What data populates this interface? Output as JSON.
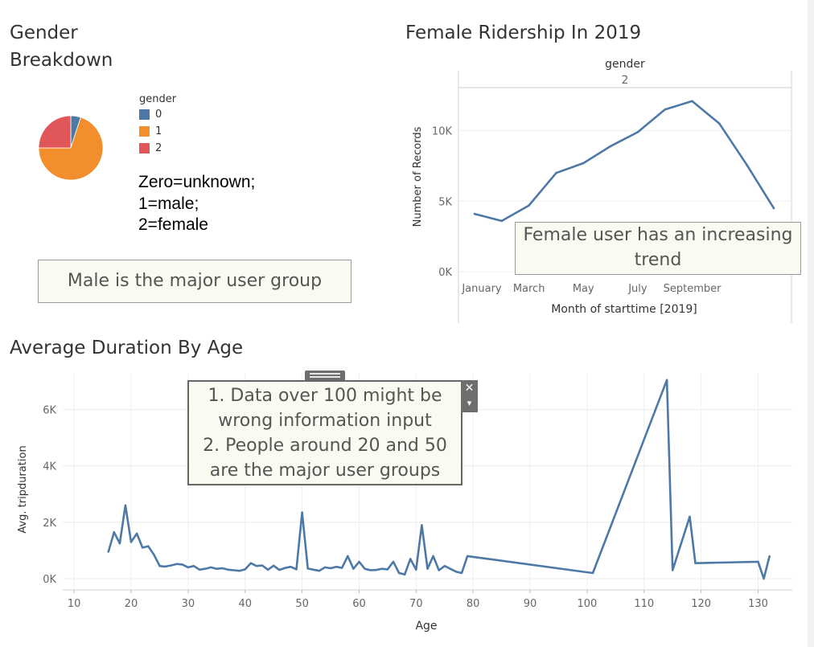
{
  "gender_sheet": {
    "title_line1": "Gender",
    "title_line2": "Breakdown",
    "legend_title": "gender",
    "legend_items": [
      {
        "label": "0",
        "color": "#4e79a7"
      },
      {
        "label": "1",
        "color": "#f28e2b"
      },
      {
        "label": "2",
        "color": "#e15759"
      }
    ],
    "note_lines": [
      "Zero=unknown;",
      "1=male;",
      "2=female"
    ],
    "annotation": "Male is the major user group"
  },
  "female_sheet": {
    "title": "Female Ridership In 2019",
    "annotation_line1": "Female user has an increasing",
    "annotation_line2": "trend"
  },
  "age_sheet": {
    "title": "Average Duration By Age",
    "annotation_lines": [
      "1. Data over 100 might be",
      "wrong information input",
      "2. People around 20 and 50",
      "are the major user groups"
    ],
    "close_glyph": "✕",
    "menu_glyph": "▾"
  },
  "chart_data": [
    {
      "type": "pie",
      "legend_title": "gender",
      "categories": [
        "0",
        "1",
        "2"
      ],
      "values": [
        5,
        70,
        25
      ],
      "colors": [
        "#4e79a7",
        "#f28e2b",
        "#e15759"
      ]
    },
    {
      "type": "line",
      "title": "Female Ridership In 2019",
      "header_label": "gender",
      "header_value": "2",
      "xlabel": "Month of starttime [2019]",
      "ylabel": "Number of Records",
      "x": [
        "January",
        "February",
        "March",
        "April",
        "May",
        "June",
        "July",
        "August",
        "September",
        "October",
        "November",
        "December"
      ],
      "xtick_labels": [
        "January",
        "March",
        "May",
        "July",
        "September"
      ],
      "values": [
        4100,
        3600,
        4700,
        7000,
        7700,
        8900,
        9900,
        11500,
        12100,
        10500,
        7600,
        4500
      ],
      "yticks": [
        0,
        5000,
        10000
      ],
      "ytick_labels": [
        "0K",
        "5K",
        "10K"
      ],
      "ylim": [
        0,
        13000
      ],
      "color": "#4e79a7",
      "grid": true
    },
    {
      "type": "line",
      "title": "Average Duration By Age",
      "xlabel": "Age",
      "ylabel": "Avg. tripduration",
      "xticks": [
        10,
        20,
        30,
        40,
        50,
        60,
        70,
        80,
        90,
        100,
        110,
        120,
        130
      ],
      "yticks": [
        0,
        2000,
        4000,
        6000
      ],
      "ytick_labels": [
        "0K",
        "2K",
        "4K",
        "6K"
      ],
      "xlim": [
        8,
        136
      ],
      "ylim": [
        -400,
        7300
      ],
      "color": "#4e79a7",
      "grid": true,
      "x": [
        16,
        17,
        18,
        19,
        20,
        21,
        22,
        23,
        24,
        25,
        26,
        27,
        28,
        29,
        30,
        31,
        32,
        33,
        34,
        35,
        36,
        37,
        38,
        39,
        40,
        41,
        42,
        43,
        44,
        45,
        46,
        47,
        48,
        49,
        50,
        51,
        52,
        53,
        54,
        55,
        56,
        57,
        58,
        59,
        60,
        61,
        62,
        63,
        64,
        65,
        66,
        67,
        68,
        69,
        70,
        71,
        72,
        73,
        74,
        75,
        76,
        77,
        78,
        79,
        101,
        114,
        115,
        118,
        119,
        130,
        131,
        132
      ],
      "values": [
        950,
        1650,
        1250,
        2600,
        1300,
        1600,
        1100,
        1150,
        850,
        450,
        430,
        470,
        520,
        500,
        400,
        450,
        320,
        350,
        400,
        350,
        370,
        320,
        300,
        280,
        330,
        550,
        450,
        470,
        320,
        460,
        310,
        380,
        420,
        330,
        2350,
        360,
        320,
        280,
        400,
        370,
        420,
        380,
        800,
        350,
        600,
        350,
        300,
        310,
        350,
        330,
        600,
        200,
        150,
        700,
        320,
        1900,
        350,
        800,
        300,
        450,
        350,
        250,
        200,
        800,
        200,
        7050,
        300,
        2200,
        550,
        600,
        0,
        800
      ]
    }
  ]
}
